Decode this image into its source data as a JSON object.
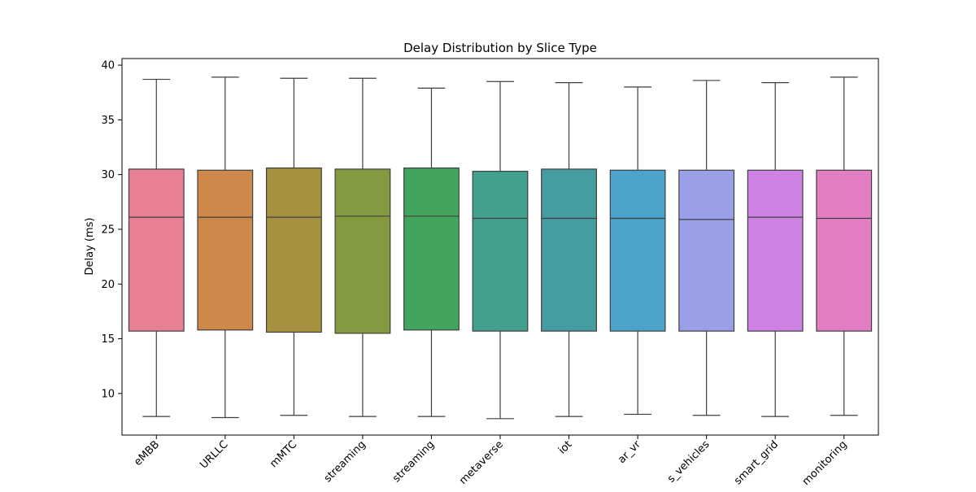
{
  "chart_data": {
    "type": "box",
    "title": "Delay Distribution by Slice Type",
    "xlabel": "",
    "ylabel": "Delay (ms)",
    "ylim": [
      6.2,
      40.6
    ],
    "yticks": [
      10,
      15,
      20,
      25,
      30,
      35,
      40
    ],
    "grid": false,
    "categories": [
      "eMBB",
      "URLLC",
      "mMTC",
      "streaming",
      "streaming",
      "metaverse",
      "iot",
      "ar_vr",
      "s_vehicles",
      "smart_grid",
      "monitoring"
    ],
    "boxes": [
      {
        "category": "eMBB",
        "whisker_low": 7.9,
        "q1": 15.7,
        "median": 26.1,
        "q3": 30.5,
        "whisker_high": 38.7,
        "color": "#e88093"
      },
      {
        "category": "URLLC",
        "whisker_low": 7.8,
        "q1": 15.8,
        "median": 26.1,
        "q3": 30.4,
        "whisker_high": 38.9,
        "color": "#cd884a"
      },
      {
        "category": "mMTC",
        "whisker_low": 8.0,
        "q1": 15.6,
        "median": 26.1,
        "q3": 30.6,
        "whisker_high": 38.8,
        "color": "#a59140"
      },
      {
        "category": "streaming",
        "whisker_low": 7.9,
        "q1": 15.5,
        "median": 26.2,
        "q3": 30.5,
        "whisker_high": 38.8,
        "color": "#849a40"
      },
      {
        "category": "streaming",
        "whisker_low": 7.9,
        "q1": 15.8,
        "median": 26.2,
        "q3": 30.6,
        "whisker_high": 37.9,
        "color": "#43a55d"
      },
      {
        "category": "metaverse",
        "whisker_low": 7.7,
        "q1": 15.7,
        "median": 26.0,
        "q3": 30.3,
        "whisker_high": 38.5,
        "color": "#44a08e"
      },
      {
        "category": "iot",
        "whisker_low": 7.9,
        "q1": 15.7,
        "median": 26.0,
        "q3": 30.5,
        "whisker_high": 38.4,
        "color": "#459da2"
      },
      {
        "category": "ar_vr",
        "whisker_low": 8.1,
        "q1": 15.7,
        "median": 26.0,
        "q3": 30.4,
        "whisker_high": 38.0,
        "color": "#4ba3cc"
      },
      {
        "category": "s_vehicles",
        "whisker_low": 8.0,
        "q1": 15.7,
        "median": 25.9,
        "q3": 30.4,
        "whisker_high": 38.6,
        "color": "#9aa0e8"
      },
      {
        "category": "smart_grid",
        "whisker_low": 7.9,
        "q1": 15.7,
        "median": 26.1,
        "q3": 30.4,
        "whisker_high": 38.4,
        "color": "#cd82e4"
      },
      {
        "category": "monitoring",
        "whisker_low": 8.0,
        "q1": 15.7,
        "median": 26.0,
        "q3": 30.4,
        "whisker_high": 38.9,
        "color": "#e47ec4"
      }
    ]
  }
}
